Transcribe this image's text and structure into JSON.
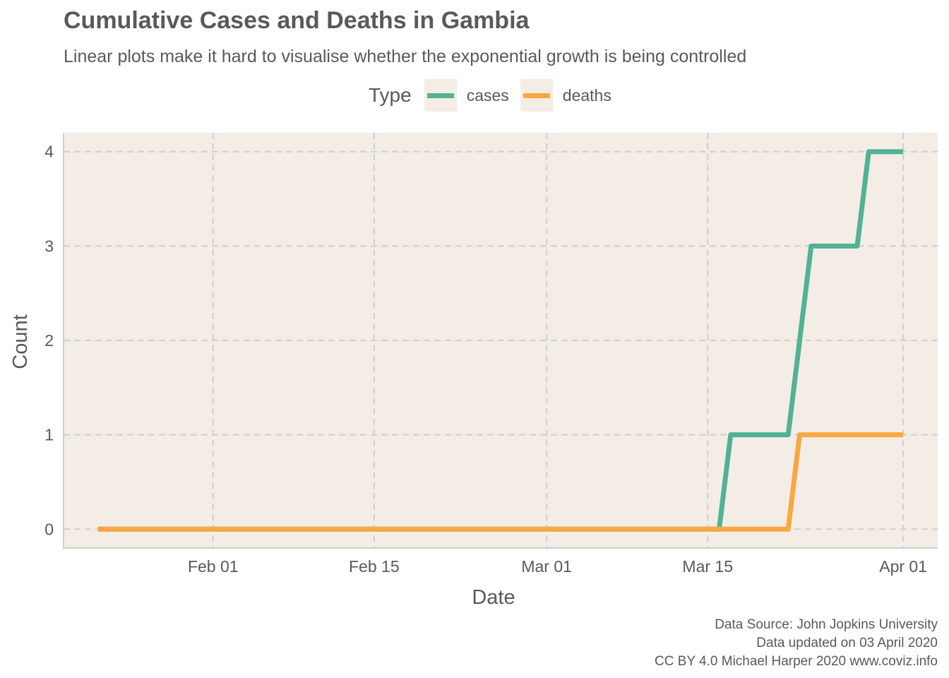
{
  "chart_data": {
    "type": "line",
    "title": "Cumulative Cases and Deaths in Gambia",
    "subtitle": "Linear plots make it hard to visualise whether the exponential growth is being controlled",
    "xlabel": "Date",
    "ylabel": "Count",
    "x_axis": {
      "type": "date",
      "ticks": [
        {
          "date": "2020-02-01",
          "label": "Feb 01"
        },
        {
          "date": "2020-02-15",
          "label": "Feb 15"
        },
        {
          "date": "2020-03-01",
          "label": "Mar 01"
        },
        {
          "date": "2020-03-15",
          "label": "Mar 15"
        },
        {
          "date": "2020-04-01",
          "label": "Apr 01"
        }
      ],
      "range": [
        "2020-01-19",
        "2020-04-04"
      ]
    },
    "y_axis": {
      "ticks": [
        0,
        1,
        2,
        3,
        4
      ],
      "range": [
        -0.2,
        4.2
      ]
    },
    "grid": true,
    "legend": {
      "title": "Type",
      "position": "top"
    },
    "series": [
      {
        "name": "cases",
        "color": "#52b293",
        "points": [
          {
            "date": "2020-01-22",
            "value": 0
          },
          {
            "date": "2020-03-16",
            "value": 0
          },
          {
            "date": "2020-03-17",
            "value": 1
          },
          {
            "date": "2020-03-22",
            "value": 1
          },
          {
            "date": "2020-03-24",
            "value": 3
          },
          {
            "date": "2020-03-28",
            "value": 3
          },
          {
            "date": "2020-03-29",
            "value": 4
          },
          {
            "date": "2020-04-01",
            "value": 4
          }
        ]
      },
      {
        "name": "deaths",
        "color": "#f9a73e",
        "points": [
          {
            "date": "2020-01-22",
            "value": 0
          },
          {
            "date": "2020-03-22",
            "value": 0
          },
          {
            "date": "2020-03-23",
            "value": 1
          },
          {
            "date": "2020-04-01",
            "value": 1
          }
        ]
      }
    ]
  },
  "caption": {
    "line1": "Data Source: John Jopkins University",
    "line2": "Data updated on 03 April 2020",
    "line3": "CC BY 4.0 Michael Harper 2020 www.coviz.info"
  }
}
